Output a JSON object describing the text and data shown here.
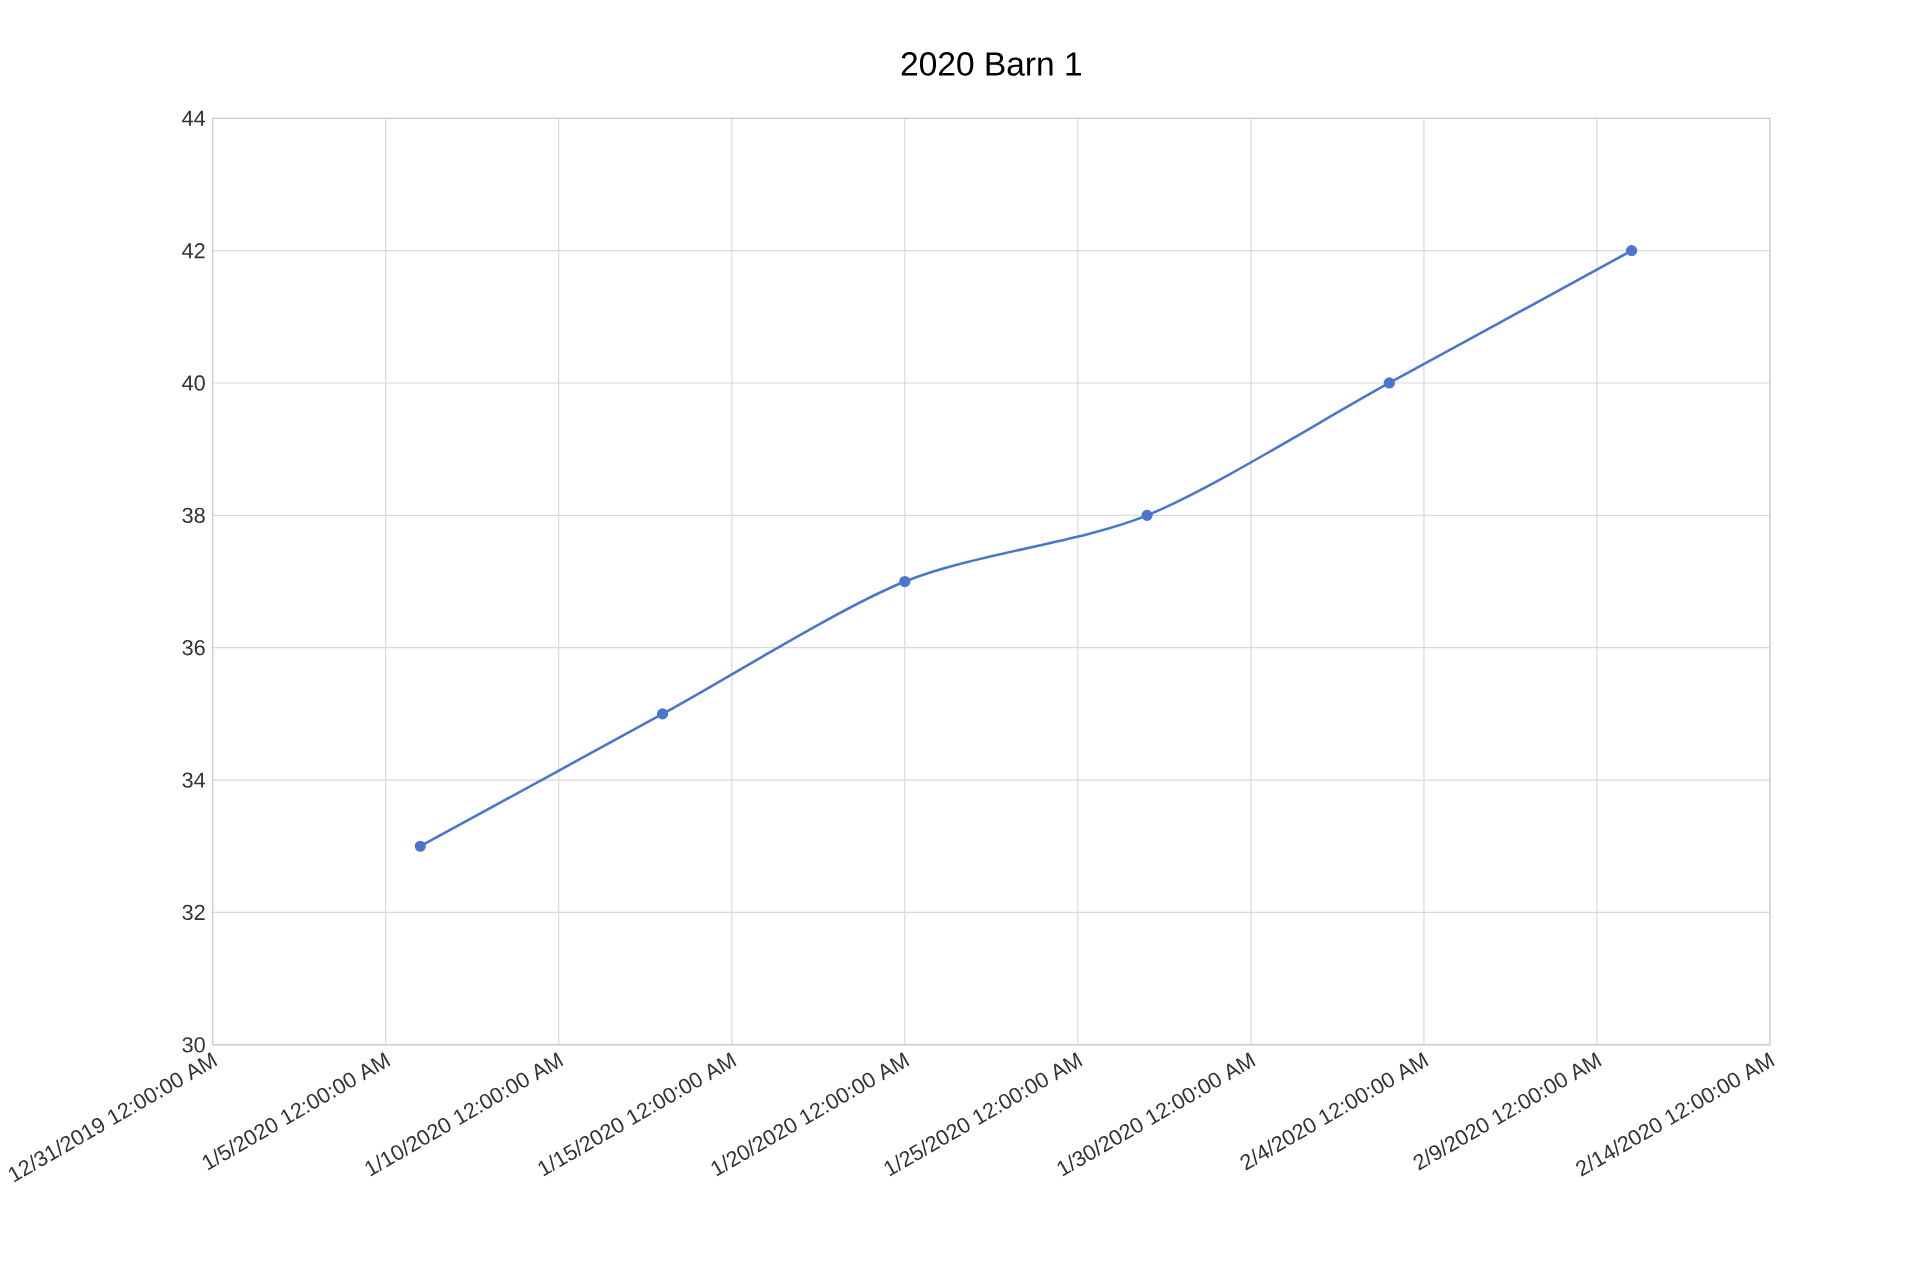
{
  "chart_data": {
    "type": "line",
    "title": "2020 Barn 1",
    "x": [
      "2020-01-06",
      "2020-01-13",
      "2020-01-20",
      "2020-01-27",
      "2020-02-03",
      "2020-02-10"
    ],
    "series": [
      {
        "color": "#4a77cc",
        "values": [
          33,
          35,
          37,
          38,
          40,
          42
        ]
      }
    ],
    "xlim": [
      "2019-12-31",
      "2020-02-14"
    ],
    "xticks": [
      {
        "value": "2019-12-31",
        "label": "12/31/2019 12:00:00 AM"
      },
      {
        "value": "2020-01-05",
        "label": "1/5/2020 12:00:00 AM"
      },
      {
        "value": "2020-01-10",
        "label": "1/10/2020 12:00:00 AM"
      },
      {
        "value": "2020-01-15",
        "label": "1/15/2020 12:00:00 AM"
      },
      {
        "value": "2020-01-20",
        "label": "1/20/2020 12:00:00 AM"
      },
      {
        "value": "2020-01-25",
        "label": "1/25/2020 12:00:00 AM"
      },
      {
        "value": "2020-01-30",
        "label": "1/30/2020 12:00:00 AM"
      },
      {
        "value": "2020-02-04",
        "label": "2/4/2020 12:00:00 AM"
      },
      {
        "value": "2020-02-09",
        "label": "2/9/2020 12:00:00 AM"
      },
      {
        "value": "2020-02-14",
        "label": "2/14/2020 12:00:00 AM"
      }
    ],
    "ylim": [
      30,
      44
    ],
    "yticks": [
      30,
      32,
      34,
      36,
      38,
      40,
      42,
      44
    ],
    "grid": true,
    "marker": "circle",
    "line_style": "solid"
  }
}
